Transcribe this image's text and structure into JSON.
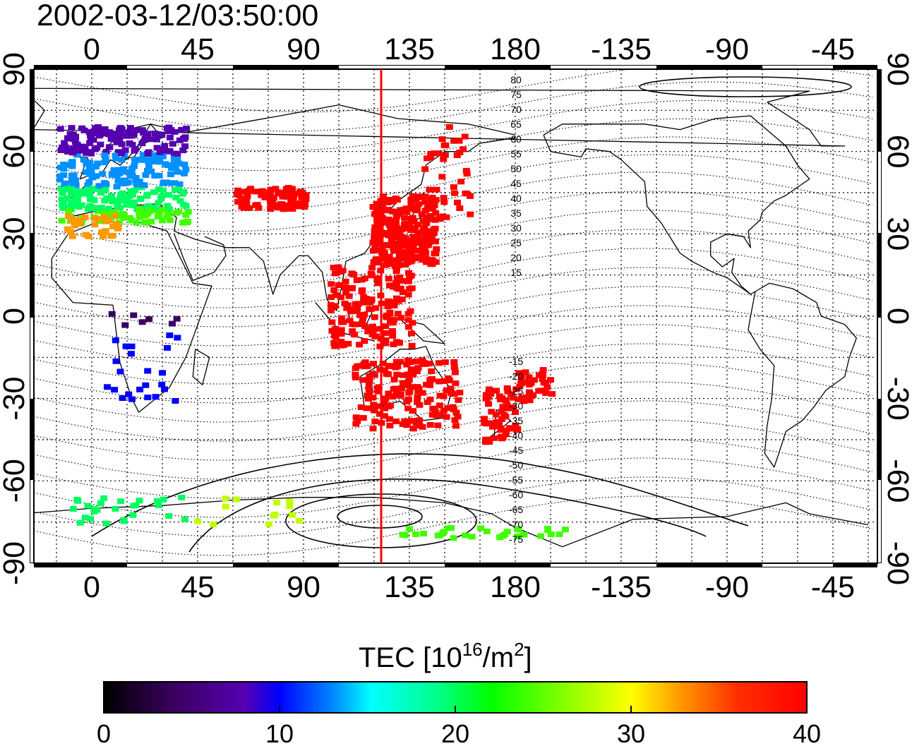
{
  "title": "2002-03-12/03:50:00",
  "lon_ticks": [
    "0",
    "45",
    "90",
    "135",
    "180",
    "-135",
    "-90",
    "-45"
  ],
  "lat_ticks": [
    "90",
    "60",
    "30",
    "0",
    "-30",
    "-60",
    "-90"
  ],
  "contour_labels": [
    "80",
    "75",
    "70",
    "65",
    "60",
    "55",
    "50",
    "45",
    "40",
    "35",
    "30",
    "25",
    "20",
    "15",
    "-15",
    "-20",
    "-25",
    "-30",
    "-35",
    "-40",
    "-45",
    "-50",
    "-55",
    "-60",
    "-65",
    "-70",
    "-75"
  ],
  "colorbar": {
    "label_main": "TEC  [10",
    "label_sup1": "16",
    "label_mid": "/m",
    "label_sup2": "2",
    "label_end": "]",
    "ticks": [
      "0",
      "10",
      "20",
      "30",
      "40"
    ],
    "min": 0,
    "max": 40
  },
  "terminator_line_color": "#ff0000",
  "colormap": [
    "#000000",
    "#3a0060",
    "#5500b0",
    "#0000ff",
    "#0090ff",
    "#00ffff",
    "#00ff60",
    "#40ff00",
    "#c0ff00",
    "#ffff00",
    "#ff9900",
    "#ff4000",
    "#ff0000"
  ]
}
